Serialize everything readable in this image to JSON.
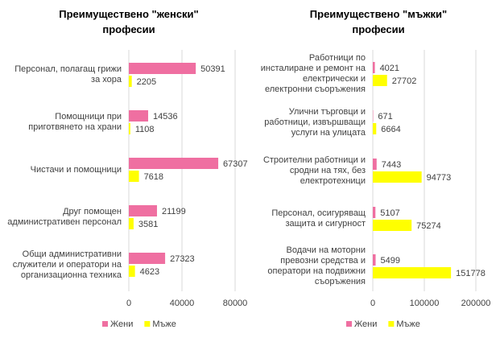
{
  "chart_data": [
    {
      "type": "bar",
      "orientation": "horizontal",
      "title": "Преимуществено \"женски\" професии",
      "categories": [
        "Персонал, полагащ грижи за хора",
        "Помощници при приготвянето на храни",
        "Чистачи и помощници",
        "Друг помощен административен персонал",
        "Общи административни служители и оператори на организационна техника"
      ],
      "series": [
        {
          "name": "Жени",
          "color": "#ef6fa1",
          "values": [
            50391,
            14536,
            67307,
            21199,
            27323
          ]
        },
        {
          "name": "Мъже",
          "color": "#ffff00",
          "values": [
            2205,
            1108,
            7618,
            3581,
            4623
          ]
        }
      ],
      "xlim": [
        0,
        80000
      ],
      "xticks": [
        0,
        40000,
        80000
      ],
      "grid": true,
      "legend": "bottom"
    },
    {
      "type": "bar",
      "orientation": "horizontal",
      "title": "Преимуществено \"мъжки\" професии",
      "categories": [
        "Работници по инсталиране и ремонт на електрически и електронни съоръжения",
        "Улични търговци и работници, извършващи услуги на улицата",
        "Строителни работници и сродни на тях, без електротехници",
        "Персонал, осигуряващ защита и сигурност",
        "Водачи на моторни превозни средства и оператори на подвижни съоръжения"
      ],
      "series": [
        {
          "name": "Жени",
          "color": "#ef6fa1",
          "values": [
            4021,
            671,
            7443,
            5107,
            5499
          ]
        },
        {
          "name": "Мъже",
          "color": "#ffff00",
          "values": [
            27702,
            6664,
            94773,
            75274,
            151778
          ]
        }
      ],
      "xlim": [
        0,
        200000
      ],
      "xticks": [
        0,
        100000,
        200000
      ],
      "grid": true,
      "legend": "bottom"
    }
  ]
}
